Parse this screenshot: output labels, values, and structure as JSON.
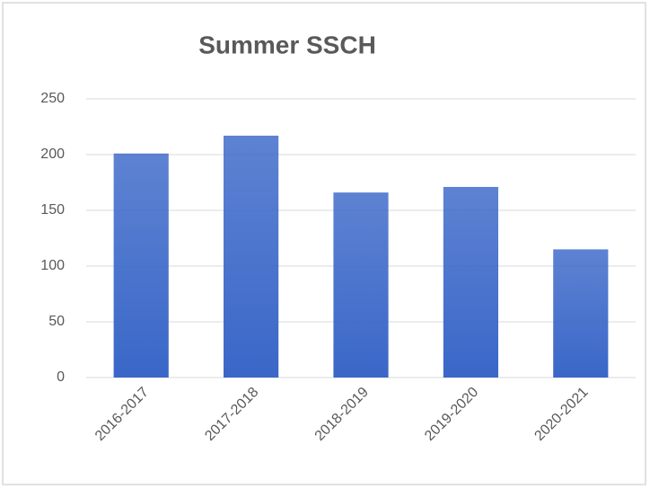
{
  "chart_data": {
    "type": "bar",
    "title": "Summer SSCH",
    "categories": [
      "2016-2017",
      "2017-2018",
      "2018-2019",
      "2019-2020",
      "2020-2021"
    ],
    "values": [
      201,
      217,
      166,
      171,
      115
    ],
    "color": "#3a67c8",
    "ylim": [
      0,
      250
    ],
    "yticks": [
      0,
      50,
      100,
      150,
      200,
      250
    ],
    "grid": true
  }
}
